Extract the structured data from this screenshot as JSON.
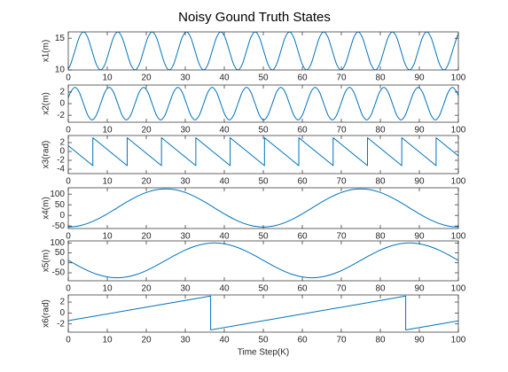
{
  "chart_data": [
    {
      "type": "line",
      "title": "Noisy Gound Truth States",
      "ylabel": "x1(m)",
      "color": "#0072bd",
      "xlim": [
        0,
        100
      ],
      "xticks": [
        0,
        10,
        20,
        30,
        40,
        50,
        60,
        70,
        80,
        90,
        100
      ],
      "ylim": [
        10,
        16
      ],
      "yticks": [
        10,
        15
      ],
      "x": [
        0,
        0.6,
        1.7,
        2.8,
        3.9,
        5,
        6.1,
        7.2,
        8.3,
        9.4,
        10.5,
        11.6,
        12.7,
        13.8,
        14.9,
        16,
        17.1,
        18.2,
        19.3,
        20.4,
        21.5,
        22.6,
        23.7,
        24.8,
        25.9,
        27,
        28.1,
        29.2,
        30.3,
        31.4,
        32.5,
        33.6,
        34.7,
        35.8,
        36.9,
        38,
        39.1,
        40.2,
        41.3,
        42.4,
        43.5,
        44.6,
        45.7,
        46.8,
        47.9,
        49,
        50.1,
        51.2,
        52.3,
        53.4,
        54.5,
        55.6,
        56.7,
        57.8,
        58.9,
        60,
        61.1,
        62.2,
        63.3,
        64.4,
        65.5,
        66.6,
        67.7,
        68.8,
        69.9,
        71,
        72.1,
        73.2,
        74.3,
        75.4,
        76.5,
        77.6,
        78.7,
        79.8,
        80.9,
        82,
        83.1,
        84.2,
        85.3,
        86.4,
        87.5,
        88.6,
        89.7,
        90.8,
        91.9,
        93,
        94.1,
        95.2,
        96.3,
        97.4,
        98.5,
        99.6,
        100
      ],
      "values": [
        10.19,
        10.88,
        13,
        15.12,
        16,
        15.12,
        13,
        10.88,
        10,
        10.88,
        13,
        15.12,
        16,
        15.12,
        13,
        10.88,
        10,
        10.88,
        13,
        15.12,
        16,
        15.12,
        13,
        10.88,
        10,
        10.88,
        13,
        15.12,
        16,
        15.12,
        13,
        10.88,
        10,
        10.88,
        13,
        15.12,
        16,
        15.12,
        13,
        10.88,
        10,
        10.88,
        13,
        15.12,
        16,
        15.12,
        13,
        10.88,
        10,
        10.88,
        13,
        15.12,
        16,
        15.12,
        13,
        10.88,
        10,
        10.88,
        13,
        15.12,
        16,
        15.12,
        13,
        10.88,
        10,
        10.88,
        13,
        15.12,
        16,
        15.12,
        13,
        10.88,
        10,
        10.88,
        13,
        15.12,
        16,
        15.12,
        13,
        10.88,
        10,
        10.88,
        13,
        15.12,
        16,
        15.12,
        13,
        10.88,
        10,
        10.88,
        13,
        15.12,
        15.63
      ]
    },
    {
      "type": "line",
      "ylabel": "x2(m)",
      "color": "#0072bd",
      "xlim": [
        0,
        100
      ],
      "xticks": [
        0,
        10,
        20,
        30,
        40,
        50,
        60,
        70,
        80,
        90,
        100
      ],
      "ylim": [
        -3.2,
        3.2
      ],
      "yticks": [
        -2,
        0,
        2
      ],
      "x": [
        0,
        0.6,
        1.7,
        2.8,
        3.9,
        5,
        6.1,
        7.2,
        8.3,
        9.4,
        10.5,
        11.6,
        12.7,
        13.8,
        14.9,
        16,
        17.1,
        18.2,
        19.3,
        20.4,
        21.5,
        22.6,
        23.7,
        24.8,
        25.9,
        27,
        28.1,
        29.2,
        30.3,
        31.4,
        32.5,
        33.6,
        34.7,
        35.8,
        36.9,
        38,
        39.1,
        40.2,
        41.3,
        42.4,
        43.5,
        44.6,
        45.7,
        46.8,
        47.9,
        49,
        50.1,
        51.2,
        52.3,
        53.4,
        54.5,
        55.6,
        56.7,
        57.8,
        58.9,
        60,
        61.1,
        62.2,
        63.3,
        64.4,
        65.5,
        66.6,
        67.7,
        68.8,
        69.9,
        71,
        72.1,
        73.2,
        74.3,
        75.4,
        76.5,
        77.6,
        78.7,
        79.8,
        80.9,
        82,
        83.1,
        84.2,
        85.3,
        86.4,
        87.5,
        88.6,
        89.7,
        90.8,
        91.9,
        93,
        94.1,
        95.2,
        96.3,
        97.4,
        98.5,
        99.6,
        100
      ],
      "values": [
        0.98,
        1.98,
        2.8,
        1.98,
        0,
        -1.98,
        -2.8,
        -1.98,
        0,
        1.98,
        2.8,
        1.98,
        0,
        -1.98,
        -2.8,
        -1.98,
        0,
        1.98,
        2.8,
        1.98,
        0,
        -1.98,
        -2.8,
        -1.98,
        0,
        1.98,
        2.8,
        1.98,
        0,
        -1.98,
        -2.8,
        -1.98,
        0,
        1.98,
        2.8,
        1.98,
        0,
        -1.98,
        -2.8,
        -1.98,
        0,
        1.98,
        2.8,
        1.98,
        0,
        -1.98,
        -2.8,
        -1.98,
        0,
        1.98,
        2.8,
        1.98,
        0,
        -1.98,
        -2.8,
        -1.98,
        0,
        1.98,
        2.8,
        1.98,
        0,
        -1.98,
        -2.8,
        -1.98,
        0,
        1.98,
        2.8,
        1.98,
        0,
        -1.98,
        -2.8,
        -1.98,
        0,
        1.98,
        2.8,
        1.98,
        0,
        -1.98,
        -2.8,
        -1.98,
        0,
        1.98,
        2.8,
        1.98,
        0,
        -1.98,
        -2.8,
        -1.98,
        0,
        1.98,
        2.8,
        1.98,
        1.34
      ]
    },
    {
      "type": "line",
      "ylabel": "x3(rad)",
      "color": "#0072bd",
      "xlim": [
        0,
        100
      ],
      "xticks": [
        0,
        10,
        20,
        30,
        40,
        50,
        60,
        70,
        80,
        90,
        100
      ],
      "ylim": [
        -5,
        3.6
      ],
      "yticks": [
        -4,
        -2,
        0,
        2
      ],
      "x": [
        0,
        6.3,
        6.3,
        15.1,
        15.1,
        23.9,
        23.9,
        32.7,
        32.7,
        41.5,
        41.5,
        50.3,
        50.3,
        59.1,
        59.1,
        67.9,
        67.9,
        76.7,
        76.7,
        85.5,
        85.5,
        94.3,
        94.3,
        100
      ],
      "values": [
        1.3,
        -3.2,
        3.1,
        -3.2,
        3.1,
        -3.2,
        3.1,
        -3.2,
        3.1,
        -3.2,
        3.1,
        -3.2,
        3.1,
        -3.2,
        3.1,
        -3.2,
        3.1,
        -3.2,
        3.1,
        -3.2,
        3.1,
        -3.2,
        3.1,
        -1
      ]
    },
    {
      "type": "line",
      "ylabel": "x4(m)",
      "color": "#0072bd",
      "xlim": [
        0,
        100
      ],
      "xticks": [
        0,
        10,
        20,
        30,
        40,
        50,
        60,
        70,
        80,
        90,
        100
      ],
      "ylim": [
        -62,
        130
      ],
      "yticks": [
        -50,
        0,
        50,
        100
      ],
      "x": [
        0,
        2.5,
        5,
        7.5,
        10,
        12.5,
        15,
        17.5,
        20,
        22.5,
        25,
        27.5,
        30,
        32.5,
        35,
        37.5,
        40,
        42.5,
        45,
        47.5,
        50,
        52.5,
        55,
        57.5,
        60,
        62.5,
        65,
        67.5,
        70,
        72.5,
        75,
        77.5,
        80,
        82.5,
        85,
        87.5,
        90,
        92.5,
        95,
        97.5,
        100
      ],
      "values": [
        -55,
        -50.6,
        -37.8,
        -17.9,
        7.2,
        35,
        62.8,
        87.9,
        107.8,
        120.6,
        125,
        120.6,
        107.8,
        87.9,
        62.8,
        35,
        7.2,
        -17.9,
        -37.8,
        -50.6,
        -55,
        -50.6,
        -37.8,
        -17.9,
        7.2,
        35,
        62.8,
        87.9,
        107.8,
        120.6,
        125,
        120.6,
        107.8,
        87.9,
        62.8,
        35,
        7.2,
        -17.9,
        -37.8,
        -50.6,
        -55
      ]
    },
    {
      "type": "line",
      "ylabel": "x5(m)",
      "color": "#0072bd",
      "xlim": [
        0,
        100
      ],
      "xticks": [
        0,
        10,
        20,
        30,
        40,
        50,
        60,
        70,
        80,
        90,
        100
      ],
      "ylim": [
        -90,
        110
      ],
      "yticks": [
        -50,
        0,
        50,
        100
      ],
      "x": [
        0,
        2.5,
        5,
        7.5,
        10,
        12.5,
        15,
        17.5,
        20,
        22.5,
        25,
        27.5,
        30,
        32.5,
        35,
        37.5,
        40,
        42.5,
        45,
        47.5,
        50,
        52.5,
        55,
        57.5,
        60,
        62.5,
        65,
        67.5,
        70,
        72.5,
        75,
        77.5,
        80,
        82.5,
        85,
        87.5,
        90,
        92.5,
        95,
        97.5,
        100
      ],
      "values": [
        12.5,
        -14.5,
        -39,
        -58.3,
        -70.7,
        -75,
        -70.7,
        -58.3,
        -39,
        -14.5,
        12.5,
        39.5,
        64,
        83.3,
        95.7,
        100,
        95.7,
        83.3,
        64,
        39.5,
        12.5,
        -14.5,
        -39,
        -58.3,
        -70.7,
        -75,
        -70.7,
        -58.3,
        -39,
        -14.5,
        12.5,
        39.5,
        64,
        83.3,
        95.7,
        100,
        95.7,
        83.3,
        64,
        39.5,
        12.5
      ]
    },
    {
      "type": "line",
      "ylabel": "x6(rad)",
      "xlabel": "Time Step(K)",
      "color": "#0072bd",
      "xlim": [
        0,
        100
      ],
      "xticks": [
        0,
        10,
        20,
        30,
        40,
        50,
        60,
        70,
        80,
        90,
        100
      ],
      "ylim": [
        -3.5,
        3.3
      ],
      "yticks": [
        -2,
        0,
        2
      ],
      "x": [
        0,
        36.5,
        36.5,
        86.5,
        86.5,
        100
      ],
      "values": [
        -1.4,
        3.1,
        -3.1,
        3.1,
        -3.1,
        -1.43
      ]
    }
  ]
}
